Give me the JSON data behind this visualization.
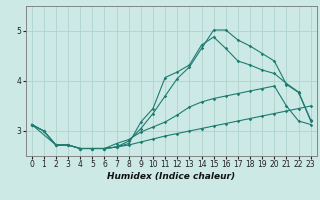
{
  "xlabel": "Humidex (Indice chaleur)",
  "bg_color": "#cce9e5",
  "grid_color": "#aacfcb",
  "line_color": "#1e7b70",
  "xlim": [
    -0.5,
    23.5
  ],
  "ylim": [
    2.5,
    5.5
  ],
  "yticks": [
    3,
    4,
    5
  ],
  "xticks": [
    0,
    1,
    2,
    3,
    4,
    5,
    6,
    7,
    8,
    9,
    10,
    11,
    12,
    13,
    14,
    15,
    16,
    17,
    18,
    19,
    20,
    21,
    22,
    23
  ],
  "line1_x": [
    0,
    1,
    2,
    3,
    4,
    5,
    6,
    7,
    8,
    9,
    10,
    11,
    12,
    13,
    14,
    15,
    16,
    17,
    18,
    19,
    20,
    21,
    22,
    23
  ],
  "line1_y": [
    3.13,
    3.0,
    2.72,
    2.72,
    2.65,
    2.65,
    2.65,
    2.68,
    2.72,
    2.78,
    2.84,
    2.9,
    2.95,
    3.0,
    3.05,
    3.1,
    3.15,
    3.2,
    3.25,
    3.3,
    3.35,
    3.4,
    3.45,
    3.5
  ],
  "line2_x": [
    0,
    1,
    2,
    3,
    4,
    5,
    6,
    7,
    8,
    9,
    10,
    11,
    12,
    13,
    14,
    15,
    16,
    17,
    18,
    19,
    20,
    21,
    22,
    23
  ],
  "line2_y": [
    3.13,
    3.0,
    2.72,
    2.72,
    2.65,
    2.65,
    2.65,
    2.68,
    2.8,
    3.05,
    3.35,
    3.7,
    4.05,
    4.28,
    4.65,
    5.02,
    5.02,
    4.82,
    4.7,
    4.55,
    4.4,
    3.93,
    3.77,
    3.2
  ],
  "line3_x": [
    0,
    2,
    3,
    4,
    5,
    6,
    7,
    8,
    9,
    10,
    11,
    12,
    13,
    14,
    15,
    16,
    17,
    18,
    19,
    20,
    21,
    22,
    23
  ],
  "line3_y": [
    3.13,
    2.72,
    2.72,
    2.65,
    2.65,
    2.65,
    2.68,
    2.75,
    3.18,
    3.45,
    4.07,
    4.18,
    4.32,
    4.72,
    4.88,
    4.65,
    4.4,
    4.32,
    4.22,
    4.15,
    3.95,
    3.78,
    3.22
  ],
  "line4_x": [
    0,
    1,
    2,
    3,
    4,
    5,
    6,
    7,
    8,
    9,
    10,
    11,
    12,
    13,
    14,
    15,
    16,
    17,
    18,
    19,
    20,
    21,
    22,
    23
  ],
  "line4_y": [
    3.13,
    3.0,
    2.72,
    2.72,
    2.65,
    2.65,
    2.65,
    2.75,
    2.83,
    2.98,
    3.08,
    3.18,
    3.32,
    3.48,
    3.58,
    3.65,
    3.7,
    3.75,
    3.8,
    3.85,
    3.9,
    3.5,
    3.2,
    3.13
  ]
}
